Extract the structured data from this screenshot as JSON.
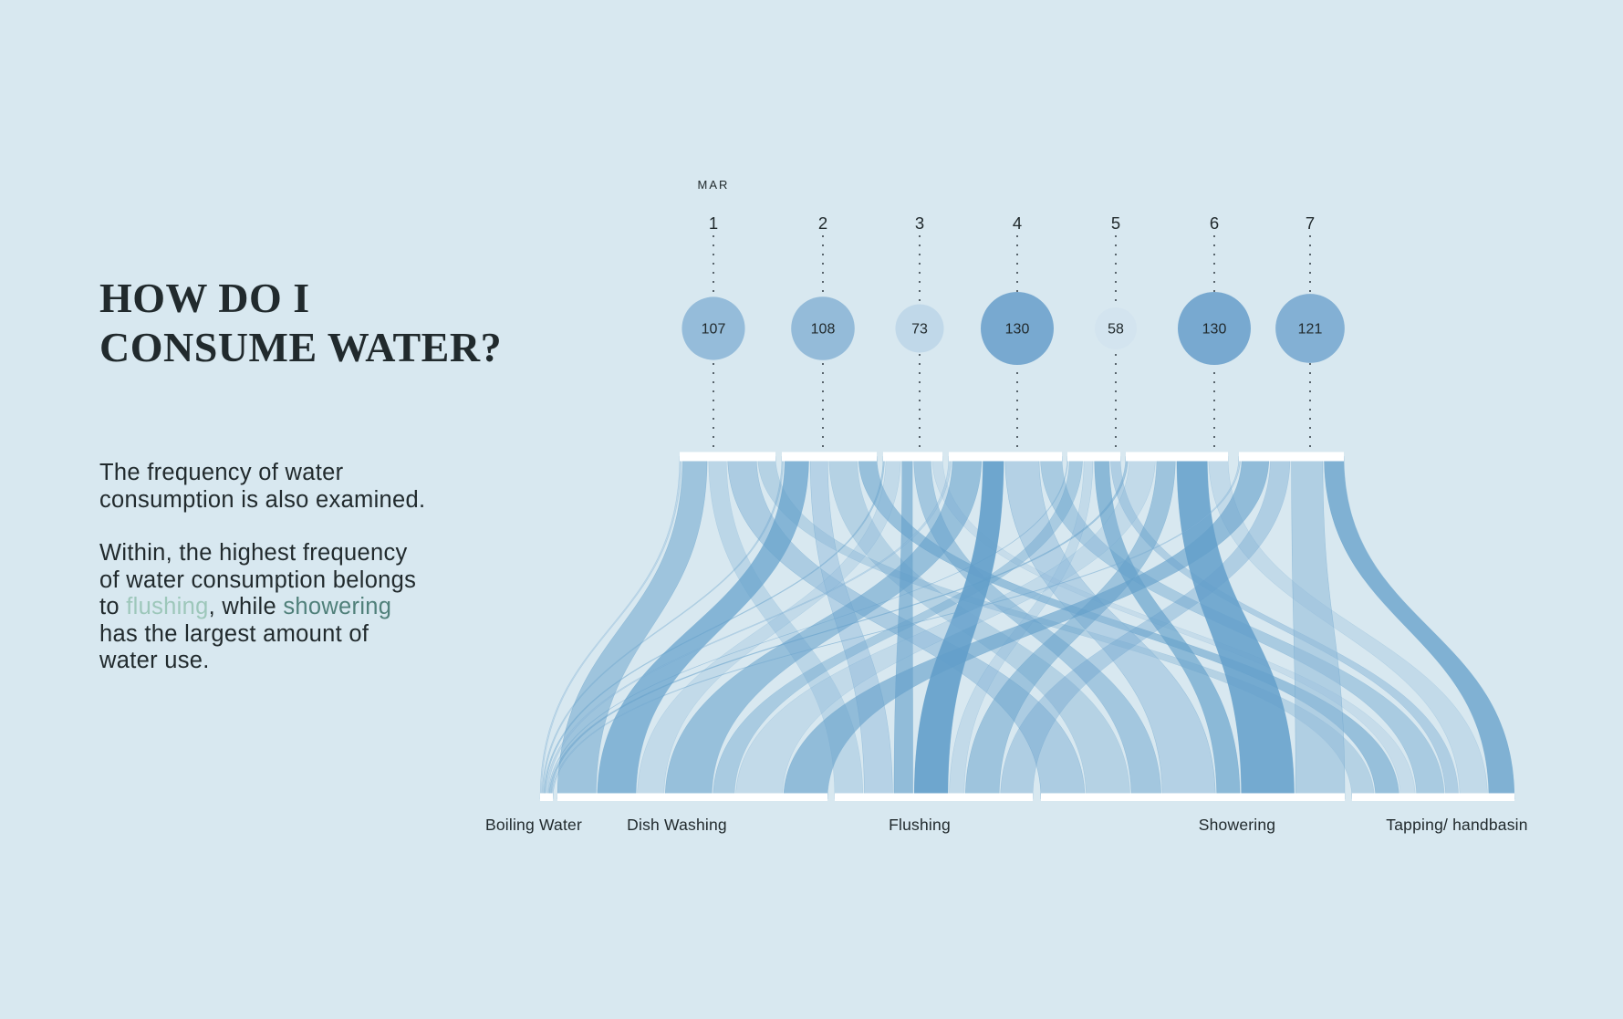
{
  "colors": {
    "background": "#d8e8f0",
    "text": "#212a2d",
    "highlight_flushing": "#9dc7ba",
    "highlight_showering": "#50807a",
    "flow_blue": "#639fca",
    "flow_blue_alt": "#8fb9d9",
    "node_bar": "#ffffff",
    "dotted_line": "#39444b",
    "circle_min": "#d3e4ef",
    "circle_max": "#78a9d0"
  },
  "intro": {
    "title_line1": "HOW DO I",
    "title_line2": "CONSUME WATER?",
    "paragraph1": "The frequency of water\nconsumption is also examined.",
    "paragraph2": {
      "part1": "Within, the highest frequency\nof water consumption belongs\nto ",
      "highlight1": "flushing",
      "part2": ", while ",
      "highlight2": "showering",
      "part3": "\nhas the largest amount of\nwater use."
    }
  },
  "chart_data": {
    "type": "sankey",
    "month_label": "MAR",
    "days": [
      "1",
      "2",
      "3",
      "4",
      "5",
      "6",
      "7"
    ],
    "day_totals": [
      107,
      108,
      73,
      130,
      58,
      130,
      121
    ],
    "categories": [
      "Boiling Water",
      "Dish Washing",
      "Flushing",
      "Showering",
      "Tapping/ handbasin"
    ],
    "flows_day_to_category": [
      [
        2,
        29,
        21,
        34,
        21
      ],
      [
        2,
        29,
        21,
        34,
        22
      ],
      [
        2,
        20,
        14,
        23,
        14
      ],
      [
        3,
        35,
        25,
        41,
        26
      ],
      [
        1,
        16,
        11,
        18,
        12
      ],
      [
        3,
        35,
        25,
        41,
        26
      ],
      [
        2,
        33,
        24,
        38,
        24
      ]
    ]
  }
}
